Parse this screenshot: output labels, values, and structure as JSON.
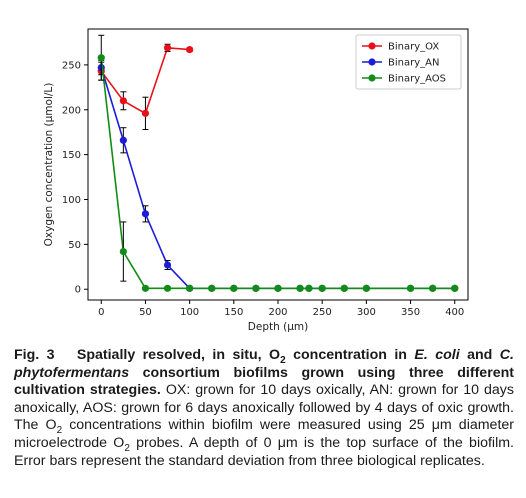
{
  "chart_data": {
    "type": "line",
    "xlabel": "Depth (μm)",
    "ylabel": "Oxygen concentration (μmol/L)",
    "xlim": [
      -15,
      415
    ],
    "ylim": [
      -12,
      290
    ],
    "xticks": [
      0,
      50,
      100,
      150,
      200,
      250,
      300,
      350,
      400
    ],
    "yticks": [
      0,
      50,
      100,
      150,
      200,
      250
    ],
    "grid": false,
    "legend_position": "top-right",
    "series": [
      {
        "name": "Binary_OX",
        "color": "#e8111a",
        "x": [
          0,
          25,
          50,
          75,
          100
        ],
        "y": [
          243,
          210,
          196,
          269,
          267
        ],
        "err": [
          10,
          10,
          18,
          4,
          2
        ]
      },
      {
        "name": "Binary_AN",
        "color": "#1c1cd9",
        "x": [
          0,
          25,
          50,
          75,
          100,
          125,
          150,
          175,
          200,
          225,
          235,
          250,
          275,
          300,
          350,
          375,
          400
        ],
        "y": [
          247,
          166,
          84,
          27,
          1,
          1,
          1,
          1,
          1,
          1,
          1,
          1,
          1,
          1,
          1,
          1,
          1
        ],
        "err": [
          8,
          14,
          9,
          5,
          1,
          0,
          0,
          0,
          0,
          0,
          0,
          0,
          0,
          0,
          0,
          0,
          0
        ]
      },
      {
        "name": "Binary_AOS",
        "color": "#128c16",
        "x": [
          0,
          25,
          50,
          75,
          100,
          125,
          150,
          175,
          200,
          225,
          235,
          250,
          275,
          300,
          350,
          375,
          400
        ],
        "y": [
          258,
          42,
          1,
          1,
          1,
          1,
          1,
          1,
          1,
          1,
          1,
          1,
          1,
          1,
          1,
          1,
          1
        ],
        "err": [
          25,
          33,
          1,
          0,
          0,
          0,
          0,
          0,
          0,
          0,
          0,
          0,
          0,
          0,
          0,
          0,
          0
        ]
      }
    ]
  },
  "caption": {
    "fig_label": "Fig. 3",
    "bold_part1": "Spatially resolved, in situ, O",
    "bold_sub1": "2",
    "bold_part2": " concentration in ",
    "bold_ecoli": "E. coli",
    "bold_part3": " and ",
    "bold_cphyto": "C. phytofermentans",
    "bold_part4": " consortium biofilms grown using three different cultivation strategies.",
    "text_part1": " OX: grown for 10 days oxically, AN: grown for 10 days anoxically, AOS: grown for 6 days anoxically followed by 4 days of oxic growth. The O",
    "sub2": "2",
    "text_part2": " concentrations within biofilm were measured using 25 μm diameter microelectrode O",
    "sub3": "2",
    "text_part3": " probes. A depth of 0 μm is the top surface of the biofilm. Error bars represent the standard deviation from three biological replicates."
  }
}
